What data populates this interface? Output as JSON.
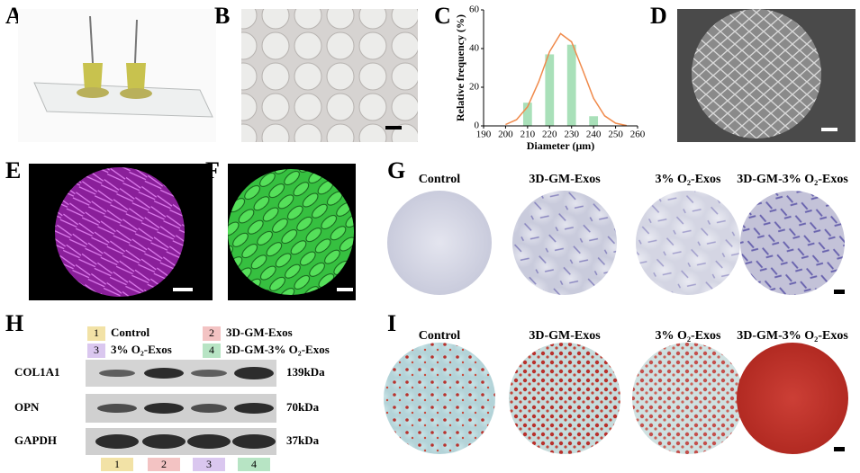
{
  "panel_labels": [
    "A",
    "B",
    "C",
    "D",
    "E",
    "F",
    "G",
    "H",
    "I"
  ],
  "chart_data": {
    "type": "bar",
    "x_label": "Diameter (μm)",
    "y_label": "Relative frequency (%)",
    "x": [
      210,
      220,
      230,
      240
    ],
    "values": [
      12,
      37,
      42,
      5
    ],
    "color": "#a9e0b9",
    "fit": {
      "color": "#f08a4b",
      "x": [
        200,
        205,
        210,
        215,
        220,
        225,
        230,
        235,
        240,
        245,
        250,
        255
      ],
      "values": [
        0.7,
        3.2,
        9.9,
        22.7,
        38.4,
        47.7,
        43.5,
        29.1,
        14.3,
        5.2,
        1.4,
        0.2
      ]
    },
    "xlim": [
      190,
      260
    ],
    "xticks": [
      190,
      200,
      210,
      220,
      230,
      240,
      250,
      260
    ],
    "ylim": [
      0,
      60
    ],
    "yticks": [
      0,
      20,
      40,
      60
    ]
  },
  "G": {
    "columns": [
      "Control",
      "3D-GM-Exos",
      "3% O₂-Exos",
      "3D-GM-3% O₂-Exos"
    ]
  },
  "H": {
    "legend": [
      {
        "number": "1",
        "label": "Control",
        "color": "#f2e2a6"
      },
      {
        "number": "2",
        "label": "3D-GM-Exos",
        "color": "#f3c3c3"
      },
      {
        "number": "3",
        "label": "3% O₂-Exos",
        "color": "#dac7ef"
      },
      {
        "number": "4",
        "label": "3D-GM-3% O₂-Exos",
        "color": "#b7e4c4"
      }
    ],
    "rows": [
      {
        "protein": "COL1A1",
        "size": "139kDa"
      },
      {
        "protein": "OPN",
        "size": "70kDa"
      },
      {
        "protein": "GAPDH",
        "size": "37kDa"
      }
    ],
    "lane_numbers": [
      "1",
      "2",
      "3",
      "4"
    ]
  },
  "I": {
    "columns": [
      "Control",
      "3D-GM-Exos",
      "3% O₂-Exos",
      "3D-GM-3% O₂-Exos"
    ]
  }
}
